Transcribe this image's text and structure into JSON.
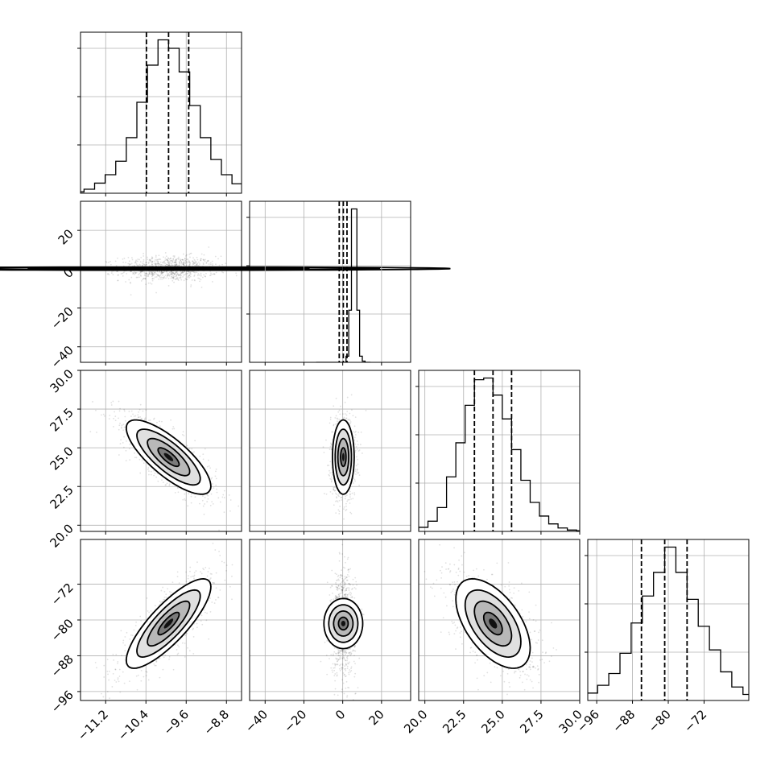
{
  "chart_data": {
    "type": "corner",
    "grid": true,
    "parameters": [
      {
        "range": [
          -11.7,
          -8.5
        ],
        "mean": -9.95,
        "std": 0.42,
        "quantiles": [
          -10.39,
          -9.95,
          -9.55
        ],
        "ticks": [
          -11.2,
          -10.4,
          -9.6,
          -8.8
        ],
        "tick_labels": [
          "−11.2",
          "−10.4",
          "−9.6",
          "−8.8"
        ]
      },
      {
        "range": [
          -48,
          35
        ],
        "mean": 0.3,
        "std": 2.8,
        "quantiles": [
          -1.8,
          0.3,
          2.2
        ],
        "ticks": [
          -40,
          -20,
          0,
          20
        ],
        "tick_labels": [
          "−40",
          "−20",
          "0",
          "20"
        ]
      },
      {
        "range": [
          19.6,
          30.0
        ],
        "mean": 24.4,
        "std": 1.2,
        "quantiles": [
          23.2,
          24.4,
          25.6
        ],
        "ticks": [
          20.0,
          22.5,
          25.0,
          27.5,
          30.0
        ],
        "tick_labels": [
          "20.0",
          "22.5",
          "25.0",
          "27.5",
          "30.0"
        ]
      },
      {
        "range": [
          -98,
          -62
        ],
        "mean": -80.8,
        "std": 5.0,
        "quantiles": [
          -86.0,
          -80.8,
          -75.8
        ],
        "ticks": [
          -96,
          -88,
          -80,
          -72
        ],
        "tick_labels": [
          "−96",
          "−88",
          "−80",
          "−72"
        ]
      }
    ],
    "histogram_bins": 20,
    "histograms": [
      [
        2,
        4,
        12,
        30,
        55,
        95,
        165,
        270,
        380,
        455,
        430,
        360,
        260,
        165,
        100,
        55,
        28,
        12,
        5,
        2
      ],
      [
        0,
        0,
        0,
        0,
        0,
        0,
        0,
        0,
        0,
        0,
        0,
        40,
        340,
        1000,
        1000,
        340,
        40,
        8,
        0,
        0
      ],
      [
        2,
        5,
        12,
        30,
        70,
        160,
        260,
        370,
        445,
        450,
        400,
        330,
        240,
        150,
        85,
        45,
        22,
        10,
        4,
        2
      ],
      [
        2,
        6,
        12,
        22,
        45,
        80,
        140,
        230,
        310,
        380,
        455,
        380,
        300,
        220,
        150,
        85,
        40,
        18,
        8,
        3
      ]
    ],
    "correlations": {
      "1-0": 0.0,
      "2-0": -0.78,
      "2-1": 0.0,
      "3-0": 0.82,
      "3-1": 0.0,
      "3-2": -0.55
    },
    "contour_levels_sigma": [
      0.5,
      1.0,
      1.5,
      2.0
    ]
  }
}
